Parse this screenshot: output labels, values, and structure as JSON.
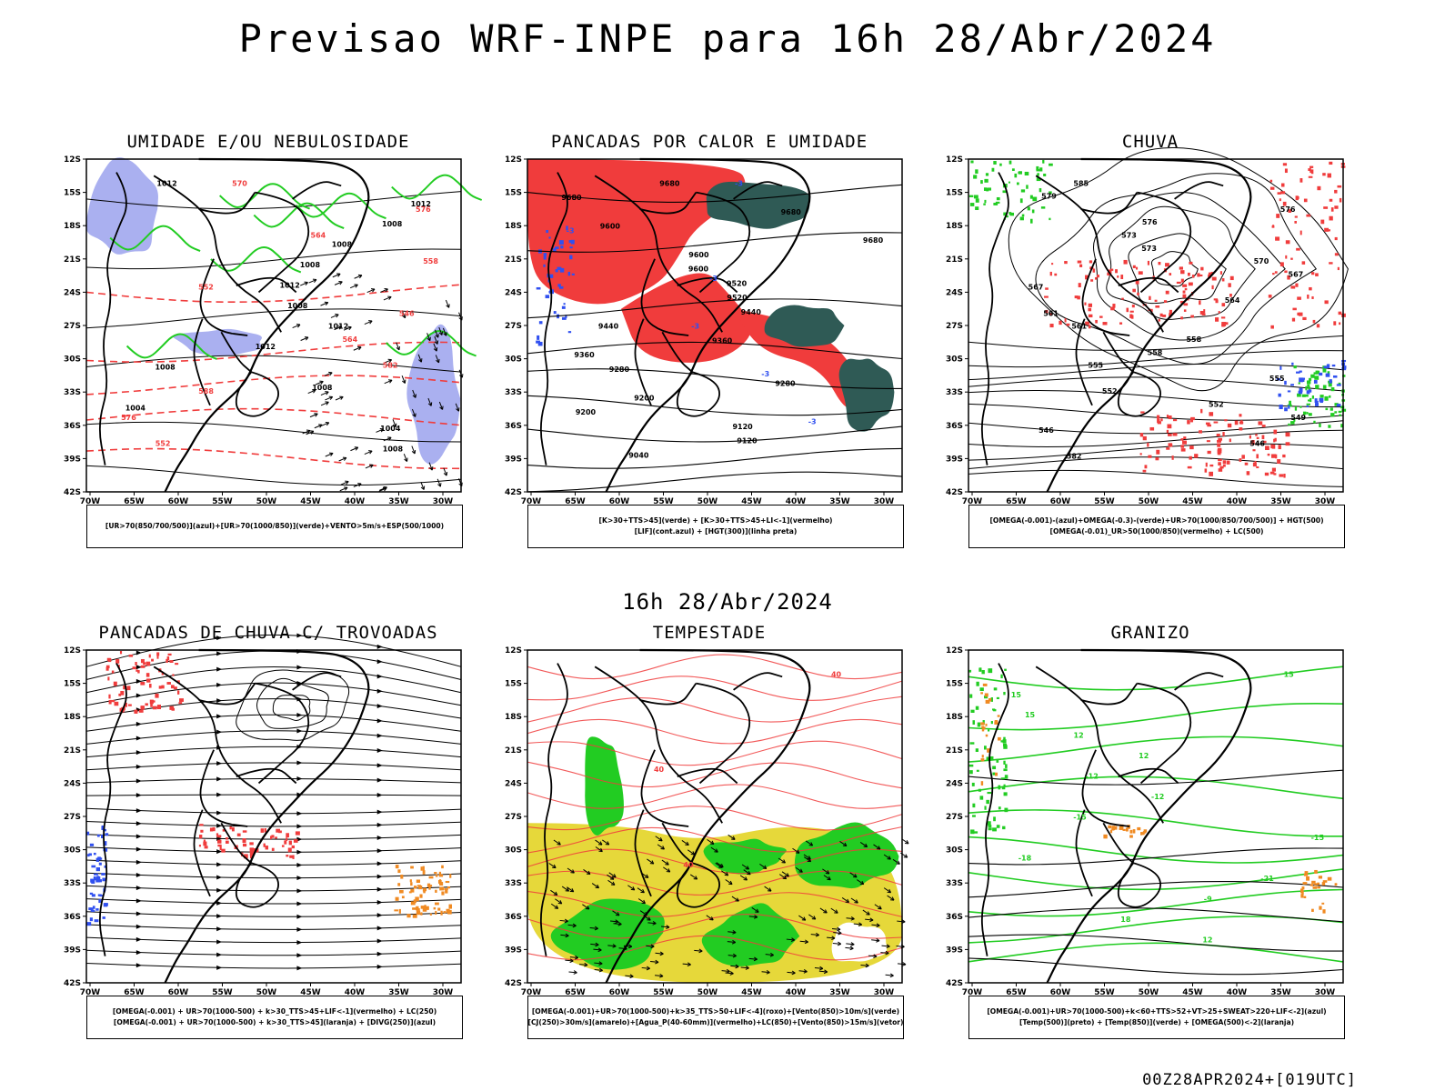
{
  "title": "Previsao WRF-INPE  para 16h 28/Abr/2024",
  "mid_label": "16h 28/Abr/2024",
  "footer": "00Z28APR2024+[019UTC]",
  "axes": {
    "lat_ticks": [
      "12S",
      "15S",
      "18S",
      "21S",
      "24S",
      "27S",
      "30S",
      "33S",
      "36S",
      "39S",
      "42S"
    ],
    "lon_ticks": [
      "70W",
      "65W",
      "60W",
      "55W",
      "50W",
      "45W",
      "40W",
      "35W",
      "30W"
    ]
  },
  "colors": {
    "humid_blue": "#aab0f0",
    "green": "#22cc22",
    "red": "#f03c3c",
    "dark_teal": "#2f5a55",
    "blue": "#3050f0",
    "orange": "#f08a22",
    "yellow": "#e6d83a"
  },
  "panels": [
    {
      "id": "p1",
      "title": "UMIDADE E/OU NEBULOSIDADE",
      "legend": [
        "[UR>70(850/700/500)](azul)+[UR>70(1000/850)](verde)+VENTO>5m/s+ESP(500/1000)"
      ],
      "labels": [
        "1012",
        "1012",
        "1008",
        "1008",
        "1008",
        "1012",
        "1008",
        "1012",
        "1012",
        "1008",
        "1008",
        "1004",
        "1004",
        "1008",
        "570",
        "576",
        "564",
        "558",
        "552",
        "546",
        "564",
        "582",
        "588",
        "576",
        "552"
      ]
    },
    {
      "id": "p2",
      "title": "PANCADAS POR CALOR E UMIDADE",
      "legend": [
        "[K>30+TTS>45](verde) + [K>30+TTS>45+LI<-1](vermelho)",
        "[LIF](cont.azul) + [HGT(300)](linha preta)"
      ],
      "labels": [
        "9680",
        "9680",
        "9680",
        "9600",
        "9680",
        "9600",
        "9600",
        "9520",
        "9520",
        "9440",
        "9440",
        "9360",
        "9360",
        "9280",
        "9280",
        "9200",
        "9200",
        "9120",
        "9120",
        "9040",
        "-3",
        "-3",
        "-3",
        "-3",
        "-3",
        "-3"
      ]
    },
    {
      "id": "p3",
      "title": "CHUVA",
      "legend": [
        "[OMEGA(-0.001)-(azul)+OMEGA(-0.3)-(verde)+UR>70(1000/850/700/500)] + HGT(500)",
        "[OMEGA(-0.01)_UR>50(1000/850)(vermelho) + LC(500)"
      ],
      "labels": [
        "585",
        "579",
        "576",
        "576",
        "573",
        "573",
        "570",
        "567",
        "567",
        "564",
        "561",
        "561",
        "558",
        "558",
        "555",
        "555",
        "552",
        "552",
        "549",
        "546",
        "546",
        "582"
      ]
    },
    {
      "id": "p4",
      "title": "PANCADAS DE CHUVA C/ TROVOADAS",
      "legend": [
        "[OMEGA(-0.001) + UR>70(1000-500) + k>30_TTS>45+LIF<-1](vermelho) + LC(250)",
        "[OMEGA(-0.001) + UR>70(1000-500) + k>30_TTS>45](laranja) + [DIVG(250)](azul)"
      ],
      "labels": []
    },
    {
      "id": "p5",
      "title": "TEMPESTADE",
      "legend": [
        "[OMEGA(-0.001)+UR>70(1000-500)+k>35_TTS>50+LIF<-4](roxo)+[Vento(850)>10m/s](verde)",
        "[CJ(250)>30m/s](amarelo)+[Agua_P(40-60mm)](vermelho)+LC(850)+[Vento(850)>15m/s](vetor)"
      ],
      "labels": [
        "40",
        "40",
        "40"
      ]
    },
    {
      "id": "p6",
      "title": "GRANIZO",
      "legend": [
        "[OMEGA(-0.001)+UR>70(1000-500)+k<60+TTS>52+VT>25+SWEAT>220+LIF<-2](azul)",
        "[Temp(500)](preto) + [Temp(850)](verde) + [OMEGA(500)<-2](laranja)"
      ],
      "labels": [
        "15",
        "15",
        "15",
        "12",
        "12",
        "-12",
        "-12",
        "-15",
        "-15",
        "-18",
        "-21",
        "-9",
        "18",
        "12"
      ]
    }
  ]
}
